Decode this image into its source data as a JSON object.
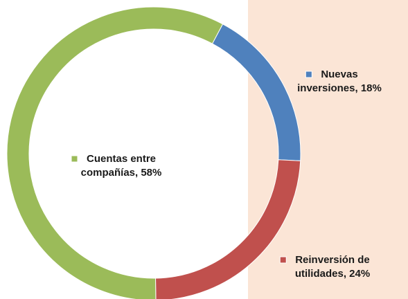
{
  "chart_data": {
    "type": "donut",
    "values": [
      18,
      24,
      58
    ],
    "value_labels": [
      [
        "Nuevas",
        "inversiones, 18%"
      ],
      [
        "Reinversión de",
        "utilidades, 24%"
      ],
      [
        "Cuentas entre",
        "compañías, 58%"
      ]
    ],
    "colors": [
      "#4f81bd",
      "#c0504d",
      "#9bbb59"
    ]
  }
}
